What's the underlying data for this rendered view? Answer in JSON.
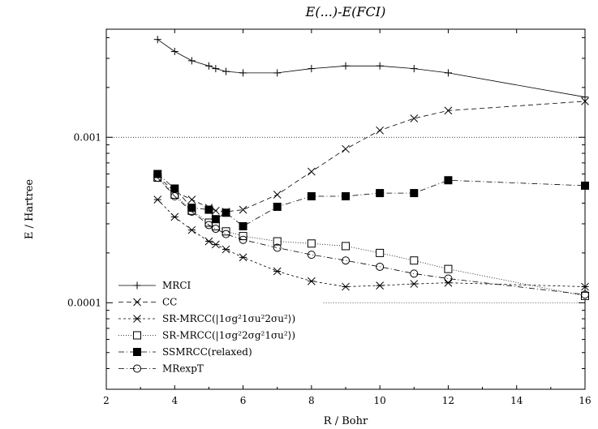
{
  "chart_data": {
    "type": "line",
    "title": "E(...)-E(FCI)",
    "xlabel": "R / Bohr",
    "ylabel": "E / Hartree",
    "xlim": [
      2,
      16
    ],
    "ylim": [
      3e-05,
      0.0045
    ],
    "yscale": "log",
    "x_ticks": [
      2,
      4,
      6,
      8,
      10,
      12,
      14,
      16
    ],
    "x_tick_labels": [
      "2",
      "4",
      "6",
      "8",
      "10",
      "12",
      "14",
      "16"
    ],
    "y_ticks": [
      0.0001,
      0.001
    ],
    "y_tick_labels": [
      "0.0001",
      "0.001"
    ],
    "reference_lines": [
      0.001,
      0.0001
    ],
    "legend_position": "bottom-left",
    "series": [
      {
        "name": "MRCI",
        "marker": "plus",
        "dash": "solid",
        "x": [
          3.5,
          4.0,
          4.5,
          5.0,
          5.2,
          5.5,
          6.0,
          7.0,
          8.0,
          9.0,
          10.0,
          11.0,
          12.0,
          16.0
        ],
        "y": [
          0.0039,
          0.0033,
          0.0029,
          0.0027,
          0.0026,
          0.0025,
          0.00245,
          0.00245,
          0.0026,
          0.0027,
          0.0027,
          0.0026,
          0.00245,
          0.00175
        ]
      },
      {
        "name": "CC",
        "marker": "x",
        "dash": "dashed",
        "x": [
          3.5,
          4.0,
          4.5,
          5.0,
          5.2,
          5.5,
          6.0,
          7.0,
          8.0,
          9.0,
          10.0,
          11.0,
          12.0,
          16.0
        ],
        "y": [
          0.00058,
          0.00047,
          0.00042,
          0.000375,
          0.00036,
          0.000355,
          0.000365,
          0.00045,
          0.00062,
          0.00085,
          0.0011,
          0.0013,
          0.00145,
          0.00165
        ]
      },
      {
        "name": "SR-MRCC(|1σg²1σu²2σu²⟩)",
        "marker": "asterisk",
        "dash": "short-dash",
        "x": [
          3.5,
          4.0,
          4.5,
          5.0,
          5.2,
          5.5,
          6.0,
          7.0,
          8.0,
          9.0,
          10.0,
          11.0,
          12.0,
          16.0
        ],
        "y": [
          0.00042,
          0.00033,
          0.000275,
          0.000235,
          0.000225,
          0.00021,
          0.000188,
          0.000155,
          0.000135,
          0.000125,
          0.000127,
          0.00013,
          0.000132,
          0.000125
        ]
      },
      {
        "name": "SR-MRCC(|1σg²2σg²1σu²⟩)",
        "marker": "open-square",
        "dash": "dotted",
        "x": [
          3.5,
          4.0,
          4.5,
          5.0,
          5.2,
          5.5,
          6.0,
          7.0,
          8.0,
          9.0,
          10.0,
          11.0,
          12.0,
          16.0
        ],
        "y": [
          0.00057,
          0.00045,
          0.00036,
          0.000305,
          0.00029,
          0.00027,
          0.000253,
          0.000235,
          0.000228,
          0.00022,
          0.0002,
          0.00018,
          0.00016,
          0.00011
        ]
      },
      {
        "name": "SSMRCC(relaxed)",
        "marker": "filled-square",
        "dash": "dash-dot",
        "x": [
          3.5,
          4.0,
          4.5,
          5.0,
          5.2,
          5.5,
          6.0,
          7.0,
          8.0,
          9.0,
          10.0,
          11.0,
          12.0,
          16.0
        ],
        "y": [
          0.0006,
          0.00049,
          0.000375,
          0.000365,
          0.00032,
          0.00035,
          0.00029,
          0.00038,
          0.00044,
          0.00044,
          0.00046,
          0.00046,
          0.00055,
          0.00051
        ]
      },
      {
        "name": "MRexpT",
        "marker": "open-circle",
        "dash": "dash-dot",
        "x": [
          3.5,
          4.0,
          4.5,
          5.0,
          5.2,
          5.5,
          6.0,
          7.0,
          8.0,
          9.0,
          10.0,
          11.0,
          12.0,
          16.0
        ],
        "y": [
          0.00057,
          0.00044,
          0.000355,
          0.000295,
          0.00028,
          0.00026,
          0.00024,
          0.000215,
          0.000195,
          0.00018,
          0.000165,
          0.00015,
          0.00014,
          0.000112
        ]
      }
    ]
  }
}
